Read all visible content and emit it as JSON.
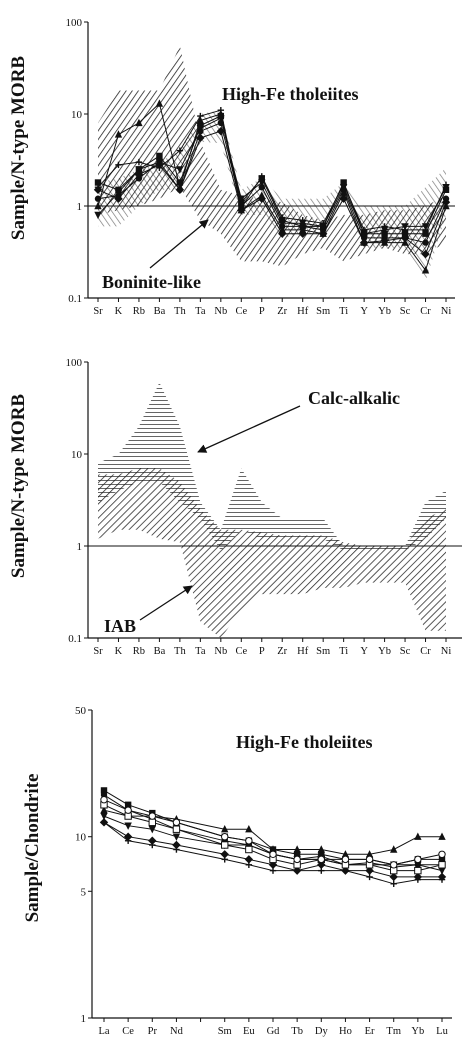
{
  "chart_data": [
    {
      "type": "line",
      "ylabel": "Sample/N-type MORB",
      "y_ticks": [
        "100",
        "10",
        "1",
        "0.1"
      ],
      "yscale": "log",
      "ylim": [
        0.1,
        100
      ],
      "reference_line": 1,
      "categories": [
        "Sr",
        "K",
        "Rb",
        "Ba",
        "Th",
        "Ta",
        "Nb",
        "Ce",
        "P",
        "Zr",
        "Hf",
        "Sm",
        "Ti",
        "Y",
        "Yb",
        "Sc",
        "Cr",
        "Ni"
      ],
      "annotations": [
        "High-Fe tholeiites",
        "Boninite-like"
      ],
      "bands": [
        {
          "name": "Boninite-like",
          "upper": [
            8,
            18,
            18,
            18,
            55,
            5,
            1.5,
            1.3,
            1.2,
            1.1,
            0.8,
            0.7,
            0.8,
            0.8,
            0.9,
            0.9,
            1.0,
            1.3
          ],
          "lower": [
            0.8,
            0.9,
            1.0,
            1.2,
            1.6,
            0.7,
            0.5,
            0.25,
            0.25,
            0.22,
            0.3,
            0.35,
            0.25,
            0.3,
            0.35,
            0.3,
            0.3,
            0.4
          ]
        },
        {
          "name": "High-Fe tholeiites",
          "upper": [
            1.8,
            2,
            2.5,
            3,
            4,
            10,
            11,
            1.5,
            2.0,
            1.2,
            1.2,
            1.2,
            1.8,
            1.0,
            1.0,
            1.0,
            1.6,
            2.6
          ],
          "lower": [
            0.6,
            0.6,
            1.0,
            1.5,
            1.5,
            5,
            4.8,
            0.8,
            0.8,
            0.45,
            0.5,
            0.5,
            1.3,
            0.35,
            0.35,
            0.35,
            0.15,
            0.8
          ]
        }
      ],
      "series": [
        {
          "values": [
            1.8,
            1.5,
            2.5,
            3.5,
            1.8,
            7.5,
            9.5,
            1.1,
            2.0,
            0.7,
            0.6,
            0.6,
            1.8,
            0.5,
            0.5,
            0.5,
            0.5,
            1.5
          ]
        },
        {
          "values": [
            1.2,
            1.3,
            2.0,
            3.0,
            1.5,
            6.5,
            8.0,
            1.0,
            1.6,
            0.6,
            0.6,
            0.55,
            1.5,
            0.45,
            0.45,
            0.45,
            0.4,
            1.2
          ]
        },
        {
          "values": [
            1.0,
            6.0,
            8.0,
            13,
            1.6,
            8.5,
            10,
            0.9,
            1.3,
            0.55,
            0.55,
            0.5,
            1.4,
            0.4,
            0.4,
            0.4,
            0.2,
            1.0
          ]
        },
        {
          "values": [
            0.8,
            1.4,
            2.5,
            3.0,
            2.5,
            7.0,
            9.0,
            1.2,
            1.8,
            0.65,
            0.65,
            0.6,
            1.6,
            0.5,
            0.55,
            0.6,
            0.6,
            1.6
          ]
        },
        {
          "values": [
            1.5,
            1.2,
            2.2,
            2.8,
            1.5,
            5.5,
            6.5,
            0.9,
            1.2,
            0.5,
            0.5,
            0.5,
            1.2,
            0.4,
            0.42,
            0.45,
            0.3,
            1.1
          ]
        },
        {
          "values": [
            1.6,
            2.8,
            3.0,
            2.6,
            4.0,
            9.5,
            11,
            0.95,
            2.1,
            0.75,
            0.7,
            0.65,
            1.7,
            0.55,
            0.6,
            0.55,
            0.55,
            1.7
          ]
        }
      ]
    },
    {
      "type": "area",
      "ylabel": "Sample/N-type MORB",
      "y_ticks": [
        "100",
        "10",
        "1",
        "0.1"
      ],
      "yscale": "log",
      "ylim": [
        0.1,
        100
      ],
      "reference_line": 1,
      "categories": [
        "Sr",
        "K",
        "Rb",
        "Ba",
        "Th",
        "Ta",
        "Nb",
        "Ce",
        "P",
        "Zr",
        "Hf",
        "Sm",
        "Ti",
        "Y",
        "Yb",
        "Sc",
        "Cr",
        "Ni"
      ],
      "annotations": [
        "Calc-alkalic",
        "IAB"
      ],
      "bands": [
        {
          "name": "Calc-alkalic",
          "upper": [
            8,
            10,
            20,
            60,
            20,
            3,
            1.5,
            7,
            3,
            2,
            2,
            2,
            1,
            1,
            1,
            1,
            3,
            4
          ],
          "lower": [
            3,
            4,
            5,
            5,
            3,
            2,
            0.9,
            1.5,
            1.2,
            1.2,
            1.2,
            1.2,
            0.9,
            0.9,
            0.9,
            0.9,
            1.2,
            2
          ]
        },
        {
          "name": "IAB",
          "upper": [
            6,
            6,
            7,
            7,
            5,
            2.5,
            1.5,
            1.5,
            1.4,
            1.3,
            1.3,
            1.3,
            1.1,
            1,
            1,
            1,
            2,
            2.5
          ],
          "lower": [
            1.2,
            1.5,
            1.5,
            1.2,
            1.1,
            0.15,
            0.1,
            0.2,
            0.3,
            0.3,
            0.3,
            0.35,
            0.35,
            0.4,
            0.4,
            0.4,
            0.12,
            0.12
          ]
        }
      ]
    },
    {
      "type": "line",
      "ylabel": "Sample/Chondrite",
      "y_ticks": [
        "50",
        "10",
        "5",
        "1"
      ],
      "yscale": "log",
      "ylim": [
        1,
        50
      ],
      "categories": [
        "La",
        "Ce",
        "Pr",
        "Nd",
        "",
        "Sm",
        "Eu",
        "Gd",
        "Tb",
        "Dy",
        "Ho",
        "Er",
        "Tm",
        "Yb",
        "Lu"
      ],
      "annotations": [
        "High-Fe tholeiites"
      ],
      "series": [
        {
          "values": [
            18,
            15,
            13.5,
            12,
            null,
            10,
            9.5,
            8.5,
            8.0,
            8.0,
            7.5,
            7.5,
            7.0,
            7.5,
            7.5
          ]
        },
        {
          "values": [
            17,
            14,
            12.5,
            11,
            null,
            9.5,
            9.0,
            8.0,
            7.5,
            7.8,
            7.0,
            7.2,
            6.8,
            7.0,
            7.0
          ]
        },
        {
          "values": [
            14,
            13,
            13,
            12.5,
            null,
            11,
            11,
            8.5,
            8.5,
            8.5,
            8.0,
            8.0,
            8.5,
            10,
            10
          ]
        },
        {
          "values": [
            13,
            11.5,
            11,
            10,
            null,
            9.0,
            9.0,
            8.0,
            7.5,
            7.5,
            7.0,
            7.0,
            7.0,
            7.0,
            6.5
          ]
        },
        {
          "values": [
            12,
            10,
            9.5,
            9.0,
            null,
            8.0,
            7.5,
            7.0,
            6.5,
            7.0,
            6.5,
            6.5,
            6.0,
            6.0,
            6.0
          ]
        },
        {
          "values": [
            12,
            9.5,
            9.0,
            8.5,
            null,
            7.5,
            7.0,
            6.5,
            6.5,
            6.5,
            6.5,
            6.0,
            5.5,
            5.8,
            5.8
          ]
        },
        {
          "values": [
            15,
            13,
            12,
            11,
            null,
            9.0,
            8.5,
            7.5,
            7.0,
            7.5,
            7.0,
            7.0,
            6.5,
            6.5,
            7.0
          ]
        },
        {
          "values": [
            16,
            14,
            13,
            12,
            null,
            10,
            9.5,
            8.0,
            7.5,
            7.5,
            7.5,
            7.5,
            7.0,
            7.5,
            8.0
          ]
        }
      ]
    }
  ]
}
